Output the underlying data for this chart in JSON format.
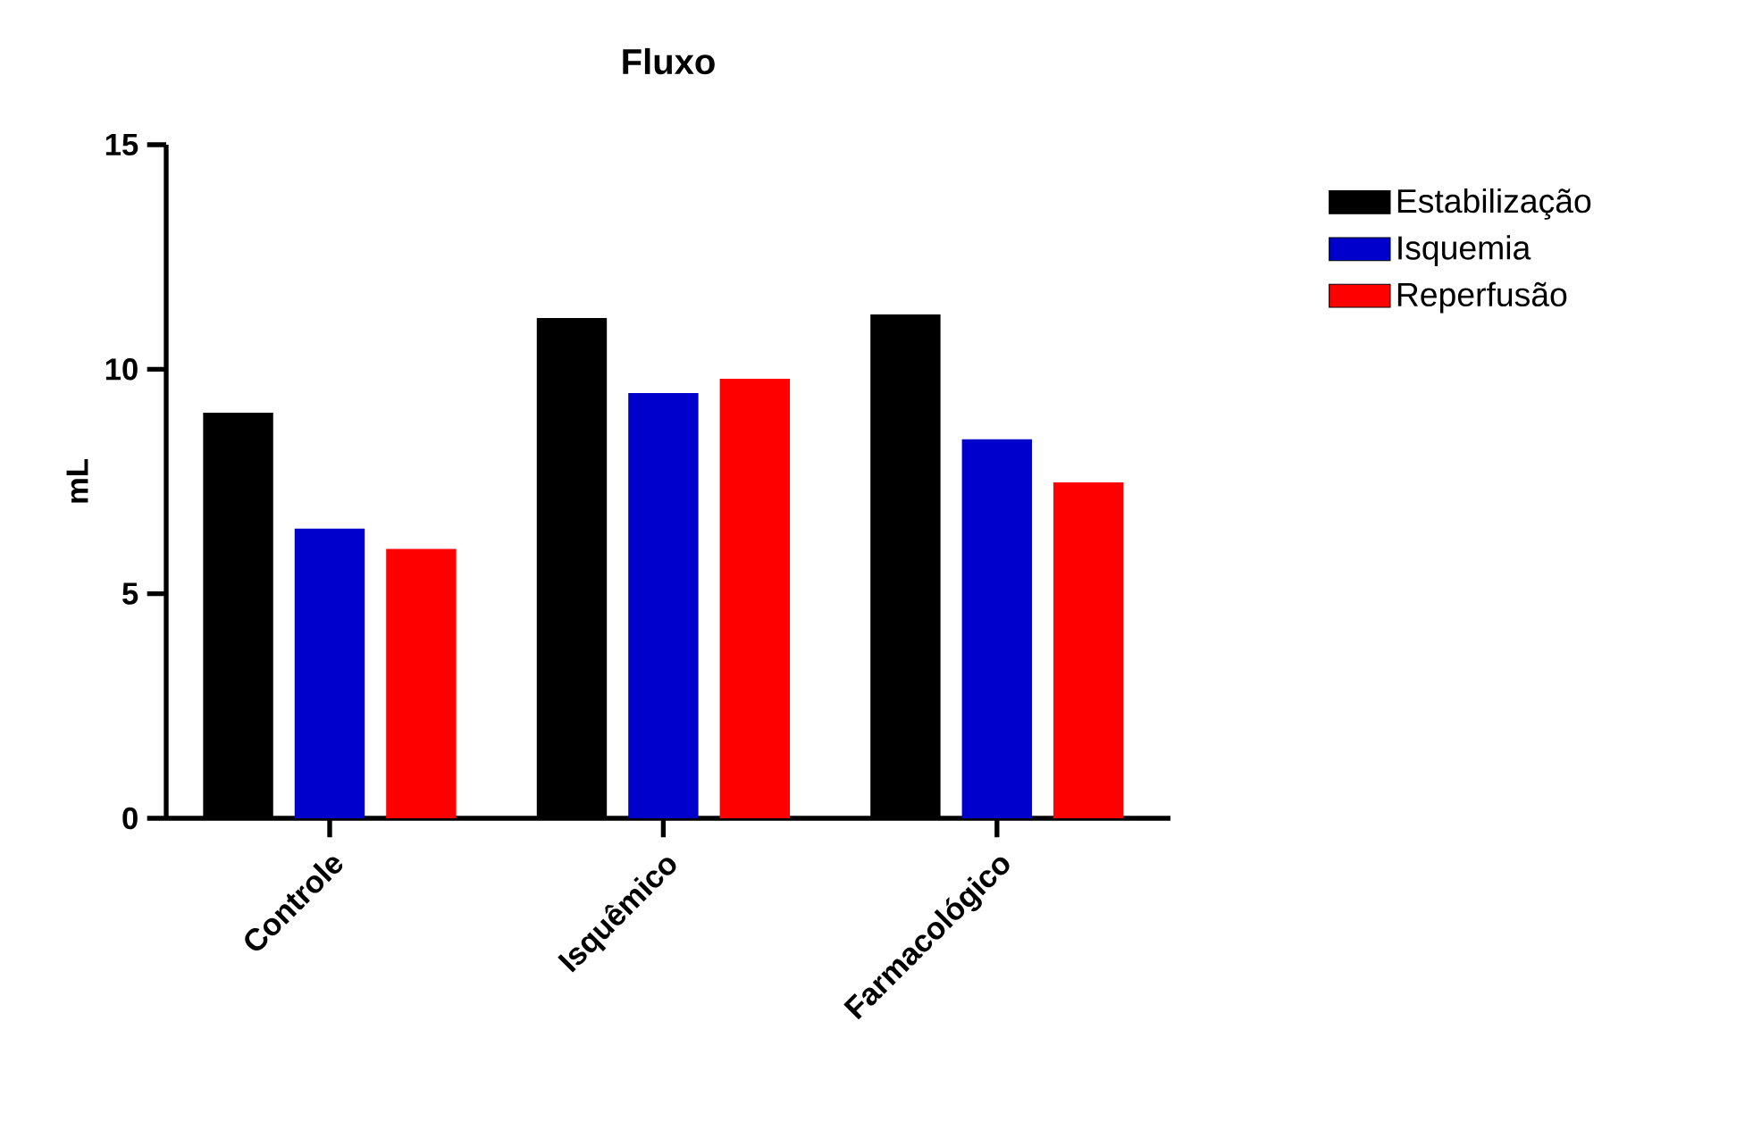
{
  "chart_data": {
    "type": "bar",
    "title": "Fluxo",
    "ylabel": "mL",
    "categories": [
      "Controle",
      "Isquêmico",
      "Farmacológico"
    ],
    "series": [
      {
        "name": "Estabilização",
        "color": "#000000",
        "values": [
          9.03,
          11.14,
          11.22
        ]
      },
      {
        "name": "Isquemia",
        "color": "#0000cc",
        "values": [
          6.45,
          9.47,
          8.44
        ]
      },
      {
        "name": "Reperfusão",
        "color": "#ff0000",
        "values": [
          6.0,
          9.79,
          7.48
        ]
      }
    ],
    "ylim": [
      0,
      15
    ],
    "yticks": [
      0,
      5,
      10,
      15
    ],
    "grid": false,
    "legend": "right"
  }
}
